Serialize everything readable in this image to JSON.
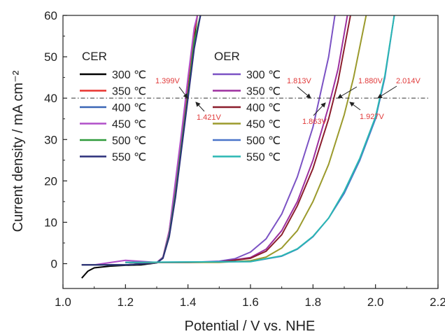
{
  "chart_data": {
    "type": "line",
    "title": "",
    "xlabel": "Potential / V vs. NHE",
    "ylabel": "Current density / mA cm⁻²",
    "xlim": [
      1.0,
      2.2
    ],
    "ylim": [
      -6,
      60
    ],
    "xticks": [
      "1.0",
      "1.2",
      "1.4",
      "1.6",
      "1.8",
      "2.0",
      "2.2"
    ],
    "yticks": [
      "0",
      "10",
      "20",
      "30",
      "40",
      "50",
      "60"
    ],
    "xtick_values": [
      1.0,
      1.2,
      1.4,
      1.6,
      1.8,
      2.0,
      2.2
    ],
    "ytick_values": [
      0,
      10,
      20,
      30,
      40,
      50,
      60
    ],
    "grid": false,
    "reference_line": {
      "y": 40,
      "style": "dash-dot"
    },
    "legend_groups": [
      {
        "title": "CER",
        "placement": "left"
      },
      {
        "title": "OER",
        "placement": "center"
      }
    ],
    "series": [
      {
        "group": "CER",
        "name": "300 ℃",
        "color": "#000000",
        "x": [
          1.06,
          1.08,
          1.1,
          1.15,
          1.2,
          1.25,
          1.3,
          1.32,
          1.34,
          1.36,
          1.38,
          1.4,
          1.42,
          1.43
        ],
        "y": [
          -3.5,
          -1.8,
          -1.0,
          -0.6,
          -0.4,
          -0.3,
          0.2,
          1.5,
          7,
          17,
          29,
          42,
          55,
          60
        ]
      },
      {
        "group": "CER",
        "name": "350 ℃",
        "color": "#e8332e",
        "x": [
          1.06,
          1.1,
          1.2,
          1.3,
          1.32,
          1.34,
          1.36,
          1.38,
          1.4,
          1.42,
          1.43
        ],
        "y": [
          -0.3,
          -0.3,
          -0.3,
          0.2,
          1.5,
          8,
          19,
          31,
          44,
          56,
          60
        ]
      },
      {
        "group": "CER",
        "name": "400 ℃",
        "color": "#3a66b5",
        "x": [
          1.06,
          1.1,
          1.2,
          1.3,
          1.32,
          1.34,
          1.36,
          1.38,
          1.4,
          1.42,
          1.44
        ],
        "y": [
          -0.3,
          -0.3,
          -0.3,
          0.2,
          1.4,
          7,
          17,
          29,
          41,
          53,
          60
        ]
      },
      {
        "group": "CER",
        "name": "450 ℃",
        "color": "#b04fc9",
        "x": [
          1.06,
          1.1,
          1.2,
          1.3,
          1.32,
          1.34,
          1.36,
          1.38,
          1.4,
          1.42,
          1.43
        ],
        "y": [
          -0.3,
          -0.3,
          0.8,
          0.3,
          1.6,
          8,
          20,
          32,
          45,
          57,
          60
        ]
      },
      {
        "group": "CER",
        "name": "500 ℃",
        "color": "#2f9a3a",
        "x": [
          1.06,
          1.1,
          1.2,
          1.3,
          1.32,
          1.34,
          1.36,
          1.38,
          1.4,
          1.42,
          1.44
        ],
        "y": [
          -0.3,
          -0.3,
          -0.3,
          0.2,
          1.4,
          7,
          17,
          29,
          41,
          54,
          60
        ]
      },
      {
        "group": "CER",
        "name": "550 ℃",
        "color": "#2b2f7a",
        "x": [
          1.06,
          1.1,
          1.2,
          1.3,
          1.32,
          1.34,
          1.36,
          1.38,
          1.4,
          1.42,
          1.44
        ],
        "y": [
          -0.3,
          -0.3,
          -0.3,
          0.2,
          1.3,
          6.5,
          16,
          28,
          40,
          52,
          60
        ]
      },
      {
        "group": "OER",
        "name": "300 ℃",
        "color": "#7b52c4",
        "x": [
          1.2,
          1.4,
          1.5,
          1.55,
          1.6,
          1.65,
          1.7,
          1.75,
          1.8,
          1.85,
          1.87
        ],
        "y": [
          0.3,
          0.3,
          0.6,
          1.2,
          2.8,
          6,
          12,
          21,
          33,
          50,
          60
        ]
      },
      {
        "group": "OER",
        "name": "350 ℃",
        "color": "#9d2f9f",
        "x": [
          1.2,
          1.4,
          1.5,
          1.6,
          1.65,
          1.7,
          1.75,
          1.8,
          1.85,
          1.88,
          1.91
        ],
        "y": [
          0.3,
          0.3,
          0.4,
          1.5,
          3.5,
          8,
          15,
          25,
          38,
          47,
          60
        ]
      },
      {
        "group": "OER",
        "name": "400 ℃",
        "color": "#8b1d2c",
        "x": [
          1.2,
          1.4,
          1.5,
          1.6,
          1.65,
          1.7,
          1.75,
          1.8,
          1.85,
          1.88,
          1.92
        ],
        "y": [
          0.3,
          0.3,
          0.4,
          1.3,
          3,
          7,
          14,
          23,
          35,
          44,
          60
        ]
      },
      {
        "group": "OER",
        "name": "450 ℃",
        "color": "#9b9a2c",
        "x": [
          1.2,
          1.5,
          1.6,
          1.65,
          1.7,
          1.75,
          1.8,
          1.85,
          1.9,
          1.93,
          1.97
        ],
        "y": [
          0.3,
          0.3,
          0.7,
          1.6,
          3.8,
          8,
          15,
          24,
          36,
          45,
          60
        ]
      },
      {
        "group": "OER",
        "name": "500 ℃",
        "color": "#4a74c9",
        "x": [
          1.2,
          1.6,
          1.7,
          1.75,
          1.8,
          1.85,
          1.9,
          1.95,
          2.0,
          2.03,
          2.06
        ],
        "y": [
          0.3,
          0.5,
          1.8,
          3.5,
          6.5,
          11,
          17,
          25,
          35,
          45,
          60
        ]
      },
      {
        "group": "OER",
        "name": "550 ℃",
        "color": "#2ab7b3",
        "x": [
          1.2,
          1.6,
          1.7,
          1.75,
          1.8,
          1.85,
          1.9,
          1.95,
          2.0,
          2.03,
          2.06
        ],
        "y": [
          0.3,
          0.5,
          1.9,
          3.6,
          6.6,
          11,
          17.5,
          25.5,
          35.5,
          45.5,
          60
        ]
      }
    ],
    "annotations": [
      {
        "text": "1.399V",
        "x": 1.399,
        "y": 40
      },
      {
        "text": "1.421V",
        "x": 1.421,
        "y": 40
      },
      {
        "text": "1.813V",
        "x": 1.813,
        "y": 40
      },
      {
        "text": "1.863V",
        "x": 1.863,
        "y": 40
      },
      {
        "text": "1.880V",
        "x": 1.88,
        "y": 40
      },
      {
        "text": "1.927V",
        "x": 1.927,
        "y": 40
      },
      {
        "text": "2.014V",
        "x": 2.014,
        "y": 40
      }
    ]
  }
}
